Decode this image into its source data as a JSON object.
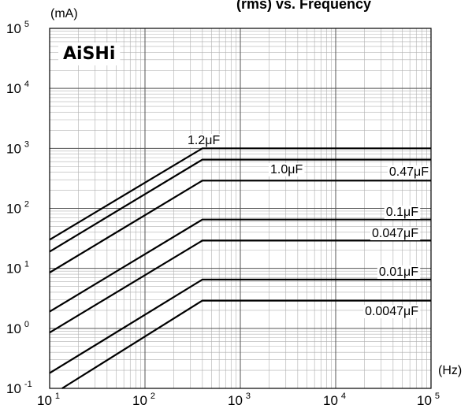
{
  "chart_data": {
    "type": "line",
    "title": "(rms) vs. Frequency",
    "logo_text": "AiSHi",
    "x_unit": "(Hz)",
    "y_unit": "(mA)",
    "x_scale": "log",
    "y_scale": "log",
    "xlim": [
      10,
      100000
    ],
    "ylim": [
      0.1,
      100000
    ],
    "grid": true,
    "x_ticks": [
      {
        "value": 10,
        "base": "10",
        "exp": "1"
      },
      {
        "value": 100,
        "base": "10",
        "exp": "2"
      },
      {
        "value": 1000,
        "base": "10",
        "exp": "3"
      },
      {
        "value": 10000,
        "base": "10",
        "exp": "4"
      },
      {
        "value": 100000,
        "base": "10",
        "exp": "5"
      }
    ],
    "y_ticks": [
      {
        "value": 0.1,
        "base": "10",
        "exp": "-1"
      },
      {
        "value": 1,
        "base": "10",
        "exp": "0"
      },
      {
        "value": 10,
        "base": "10",
        "exp": "1"
      },
      {
        "value": 100,
        "base": "10",
        "exp": "2"
      },
      {
        "value": 1000,
        "base": "10",
        "exp": "3"
      },
      {
        "value": 10000,
        "base": "10",
        "exp": "4"
      },
      {
        "value": 100000,
        "base": "10",
        "exp": "5"
      }
    ],
    "series": [
      {
        "name": "1.2μF",
        "points": [
          [
            10,
            30
          ],
          [
            400,
            1000
          ],
          [
            100000,
            1000
          ]
        ]
      },
      {
        "name": "1.0μF",
        "points": [
          [
            10,
            19
          ],
          [
            400,
            650
          ],
          [
            100000,
            650
          ]
        ]
      },
      {
        "name": "0.47μF",
        "points": [
          [
            10,
            8.5
          ],
          [
            400,
            290
          ],
          [
            100000,
            290
          ]
        ]
      },
      {
        "name": "0.1μF",
        "points": [
          [
            10,
            1.9
          ],
          [
            400,
            65
          ],
          [
            100000,
            65
          ]
        ]
      },
      {
        "name": "0.047μF",
        "points": [
          [
            10,
            0.85
          ],
          [
            400,
            29
          ],
          [
            100000,
            29
          ]
        ]
      },
      {
        "name": "0.01μF",
        "points": [
          [
            10,
            0.18
          ],
          [
            400,
            6.5
          ],
          [
            100000,
            6.5
          ]
        ]
      },
      {
        "name": "0.0047μF",
        "points": [
          [
            13.5,
            0.1
          ],
          [
            400,
            2.9
          ],
          [
            100000,
            2.9
          ]
        ]
      }
    ]
  }
}
